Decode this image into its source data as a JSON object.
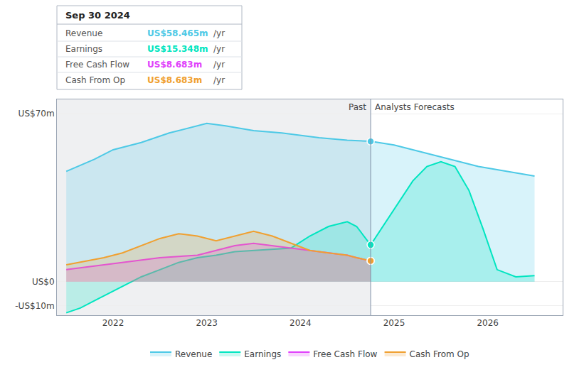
{
  "chart_data": {
    "type": "area",
    "xlim": [
      2021.4,
      2026.8
    ],
    "xticks": [
      2022,
      2023,
      2024,
      2025,
      2026
    ],
    "ylim": [
      -14,
      76
    ],
    "yticks": [
      {
        "value": -10,
        "label": "-US$10m"
      },
      {
        "value": 0,
        "label": "US$0"
      },
      {
        "value": 70,
        "label": "US$70m"
      }
    ],
    "grid": true,
    "legend": "bottom",
    "divider_x": 2024.75,
    "past_label": "Past",
    "forecast_label": "Analysts Forecasts",
    "series": [
      {
        "name": "Revenue",
        "color": "#4dc9e6",
        "x": [
          2021.5,
          2021.8,
          2022.0,
          2022.3,
          2022.6,
          2022.9,
          2023.0,
          2023.2,
          2023.5,
          2023.8,
          2024.0,
          2024.2,
          2024.5,
          2024.75,
          2025.0,
          2025.3,
          2025.6,
          2025.9,
          2026.2,
          2026.5
        ],
        "values": [
          46,
          51,
          55,
          58,
          62,
          65,
          66,
          65,
          63,
          62,
          61,
          60,
          59,
          58.5,
          57,
          54,
          51,
          48,
          46,
          44
        ],
        "point": {
          "x": 2024.75,
          "y": 58.465
        }
      },
      {
        "name": "Earnings",
        "color": "#00e5c0",
        "x": [
          2021.5,
          2021.65,
          2021.8,
          2021.95,
          2022.1,
          2022.3,
          2022.5,
          2022.7,
          2022.9,
          2023.1,
          2023.3,
          2023.5,
          2023.7,
          2023.9,
          2024.1,
          2024.3,
          2024.5,
          2024.6,
          2024.75,
          2025.0,
          2025.2,
          2025.35,
          2025.5,
          2025.65,
          2025.8,
          2025.95,
          2026.1,
          2026.3,
          2026.5
        ],
        "values": [
          -13,
          -11,
          -8,
          -5,
          -2,
          2,
          5,
          8,
          10,
          11,
          12.5,
          13,
          13.5,
          14,
          19,
          23,
          25,
          23,
          15.3,
          30,
          42,
          48,
          50,
          48,
          38,
          22,
          5,
          2,
          2.5
        ],
        "point": {
          "x": 2024.75,
          "y": 15.348
        }
      },
      {
        "name": "Free Cash Flow",
        "color": "#e040fb",
        "x": [
          2021.5,
          2021.7,
          2021.9,
          2022.1,
          2022.3,
          2022.5,
          2022.7,
          2022.9,
          2023.1,
          2023.3,
          2023.5,
          2023.7,
          2023.9,
          2024.1,
          2024.3,
          2024.5,
          2024.6,
          2024.75
        ],
        "values": [
          5,
          6,
          7,
          8,
          9,
          10,
          10.5,
          11,
          13,
          15,
          16,
          15,
          14,
          13,
          12,
          11,
          10,
          8.683
        ],
        "point": {
          "x": 2024.75,
          "y": 8.683
        }
      },
      {
        "name": "Cash From Op",
        "color": "#f0a030",
        "x": [
          2021.5,
          2021.7,
          2021.9,
          2022.1,
          2022.3,
          2022.5,
          2022.7,
          2022.9,
          2023.1,
          2023.3,
          2023.5,
          2023.7,
          2023.9,
          2024.1,
          2024.3,
          2024.5,
          2024.6,
          2024.75
        ],
        "values": [
          7,
          8.5,
          10,
          12,
          15,
          18,
          20,
          19,
          17,
          19,
          21,
          19,
          16,
          13,
          12,
          11,
          10,
          8.683
        ],
        "point": {
          "x": 2024.75,
          "y": 8.683
        }
      }
    ],
    "tooltip": {
      "title": "Sep 30 2024",
      "rows": [
        {
          "label": "Revenue",
          "value": "US$58.465m",
          "unit": "/yr",
          "color": "#4dc9e6"
        },
        {
          "label": "Earnings",
          "value": "US$15.348m",
          "unit": "/yr",
          "color": "#00e5c0"
        },
        {
          "label": "Free Cash Flow",
          "value": "US$8.683m",
          "unit": "/yr",
          "color": "#e040fb"
        },
        {
          "label": "Cash From Op",
          "value": "US$8.683m",
          "unit": "/yr",
          "color": "#f0a030"
        }
      ]
    }
  }
}
